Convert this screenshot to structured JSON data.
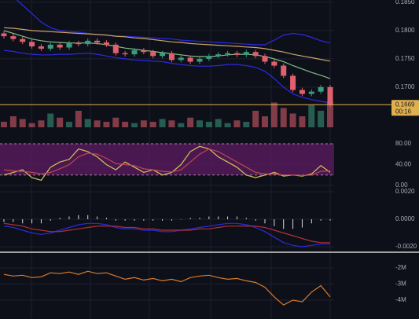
{
  "chart_data": [
    {
      "type": "candlestick",
      "open": [
        0.1795,
        0.179,
        0.1785,
        0.178,
        0.1772,
        0.1768,
        0.1775,
        0.177,
        0.1778,
        0.1776,
        0.1782,
        0.1779,
        0.1775,
        0.176,
        0.1758,
        0.1765,
        0.1762,
        0.1755,
        0.176,
        0.1748,
        0.1752,
        0.1745,
        0.175,
        0.1755,
        0.1758,
        0.176,
        0.1757,
        0.1762,
        0.1755,
        0.1745,
        0.1738,
        0.172,
        0.1695,
        0.1688,
        0.1692,
        0.17
      ],
      "high": [
        0.1799,
        0.1794,
        0.1789,
        0.1784,
        0.1776,
        0.1779,
        0.1779,
        0.1782,
        0.1782,
        0.1786,
        0.1786,
        0.1783,
        0.1779,
        0.1764,
        0.1769,
        0.1769,
        0.1766,
        0.1764,
        0.1764,
        0.1756,
        0.1756,
        0.1754,
        0.1759,
        0.1762,
        0.1764,
        0.1764,
        0.1766,
        0.1766,
        0.1759,
        0.1749,
        0.1742,
        0.1724,
        0.1699,
        0.1696,
        0.1704,
        0.1704
      ],
      "low": [
        0.1786,
        0.1781,
        0.1776,
        0.1768,
        0.1764,
        0.1764,
        0.1766,
        0.1766,
        0.1772,
        0.1772,
        0.1775,
        0.1771,
        0.1756,
        0.1754,
        0.1754,
        0.1758,
        0.1751,
        0.1751,
        0.1744,
        0.1744,
        0.1741,
        0.1741,
        0.1746,
        0.1751,
        0.1754,
        0.1753,
        0.1753,
        0.1751,
        0.1741,
        0.1734,
        0.1716,
        0.1691,
        0.1684,
        0.1684,
        0.1688,
        0.1665
      ],
      "close": [
        0.179,
        0.1785,
        0.178,
        0.1772,
        0.1768,
        0.1775,
        0.177,
        0.1778,
        0.1776,
        0.1782,
        0.1779,
        0.1775,
        0.176,
        0.1758,
        0.1765,
        0.1762,
        0.1755,
        0.176,
        0.1748,
        0.1752,
        0.1745,
        0.175,
        0.1755,
        0.1758,
        0.176,
        0.1757,
        0.1762,
        0.1755,
        0.1745,
        0.1738,
        0.172,
        0.1695,
        0.1688,
        0.1692,
        0.17,
        0.1669
      ],
      "up_color": "#3d9c80",
      "down_color": "#e0606e",
      "volume": [
        20,
        40,
        30,
        15,
        25,
        50,
        35,
        20,
        60,
        30,
        25,
        20,
        35,
        20,
        15,
        25,
        20,
        30,
        25,
        15,
        35,
        25,
        20,
        30,
        15,
        25,
        20,
        60,
        40,
        90,
        70,
        50,
        40,
        80,
        60,
        95
      ],
      "vlim": [
        0,
        100
      ],
      "series": [
        {
          "color": "#2a2ae0",
          "values": [
            0.187,
            0.186,
            0.1845,
            0.183,
            0.1815,
            0.1805,
            0.18,
            0.1798,
            0.1797,
            0.1795,
            0.1793,
            0.1792,
            0.179,
            0.179,
            0.1789,
            0.1788,
            0.1787,
            0.1786,
            0.1785,
            0.1783,
            0.1782,
            0.1781,
            0.178,
            0.1779,
            0.1778,
            0.1777,
            0.1776,
            0.1775,
            0.1775,
            0.1783,
            0.1792,
            0.1795,
            0.1793,
            0.1788,
            0.1782,
            0.1778
          ]
        },
        {
          "color": "#2a2ae0",
          "values": [
            0.1765,
            0.1763,
            0.176,
            0.1758,
            0.1757,
            0.1757,
            0.1758,
            0.1758,
            0.1759,
            0.176,
            0.1758,
            0.1755,
            0.1752,
            0.175,
            0.1748,
            0.1747,
            0.1746,
            0.1745,
            0.1742,
            0.174,
            0.1738,
            0.1737,
            0.1737,
            0.1738,
            0.174,
            0.174,
            0.1738,
            0.1735,
            0.1728,
            0.1715,
            0.17,
            0.1688,
            0.1682,
            0.1678,
            0.1675,
            0.1672
          ]
        },
        {
          "color": "#7fbf7f",
          "values": [
            0.18,
            0.1795,
            0.179,
            0.1785,
            0.1782,
            0.178,
            0.1779,
            0.1778,
            0.1778,
            0.1778,
            0.1777,
            0.1775,
            0.1772,
            0.1769,
            0.1767,
            0.1765,
            0.1763,
            0.1761,
            0.1759,
            0.1757,
            0.1755,
            0.1754,
            0.1754,
            0.1755,
            0.1757,
            0.1758,
            0.1758,
            0.1757,
            0.1754,
            0.175,
            0.1745,
            0.1738,
            0.1732,
            0.1726,
            0.1721,
            0.1715
          ]
        },
        {
          "color": "#c9a36a",
          "values": [
            0.1805,
            0.1804,
            0.1802,
            0.18,
            0.1799,
            0.1798,
            0.1797,
            0.1796,
            0.1795,
            0.1794,
            0.1793,
            0.1792,
            0.179,
            0.1789,
            0.1787,
            0.1786,
            0.1784,
            0.1782,
            0.178,
            0.1779,
            0.1777,
            0.1776,
            0.1775,
            0.1774,
            0.1773,
            0.1772,
            0.1771,
            0.177,
            0.1768,
            0.1765,
            0.1762,
            0.1758,
            0.1755,
            0.1752,
            0.1749,
            0.1746
          ]
        }
      ],
      "ylim": [
        0.1604,
        0.1854
      ],
      "yticks": [
        {
          "value": 0.185,
          "label": "0.1850"
        },
        {
          "value": 0.18,
          "label": "0.1800"
        },
        {
          "value": 0.175,
          "label": "0.1750"
        },
        {
          "value": 0.17,
          "label": "0.1700"
        }
      ],
      "last_price": {
        "value": 0.1669,
        "label": "0.1669"
      },
      "countdown": "00:16",
      "last_color": "#e0b050"
    },
    {
      "type": "line",
      "band": [
        20,
        80
      ],
      "band_color": "#5a1a5e",
      "series": [
        {
          "color": "#d4c45a",
          "values": [
            20,
            25,
            30,
            15,
            10,
            35,
            45,
            50,
            70,
            65,
            55,
            40,
            30,
            45,
            35,
            25,
            30,
            20,
            25,
            40,
            65,
            75,
            70,
            55,
            45,
            35,
            20,
            15,
            20,
            25,
            18,
            20,
            18,
            22,
            38,
            25
          ]
        },
        {
          "color": "#c0464e",
          "values": [
            30,
            28,
            27,
            25,
            22,
            25,
            32,
            40,
            55,
            62,
            60,
            52,
            42,
            40,
            38,
            32,
            30,
            27,
            26,
            30,
            45,
            60,
            70,
            65,
            55,
            45,
            35,
            25,
            22,
            22,
            20,
            20,
            19,
            20,
            27,
            28
          ]
        }
      ],
      "ylim": [
        -6,
        84.5
      ],
      "yticks": [
        {
          "value": 80,
          "label": "80.00"
        },
        {
          "value": 40,
          "label": "40.00"
        },
        {
          "value": 0,
          "label": "0.00"
        }
      ]
    },
    {
      "type": "line",
      "histogram": [
        -0.0002,
        -0.0002,
        -0.0003,
        -0.0003,
        -0.0003,
        -0.0001,
        0.0001,
        0.0002,
        0.0003,
        0.0003,
        0.0002,
        0.0001,
        -0.0001,
        -0.0001,
        -0.0001,
        -0.0001,
        -0.0001,
        -0.0001,
        -0.0001,
        0,
        0.0001,
        0.0001,
        0.0002,
        0.0002,
        0.0002,
        0.0002,
        0.0001,
        -0.0001,
        -0.0003,
        -0.0005,
        -0.0007,
        -0.0007,
        -0.0006,
        -0.0003,
        -0.0001,
        -0.0001
      ],
      "histogram_color": "#d8d8d8",
      "series": [
        {
          "color": "#2a2ae0",
          "values": [
            -0.0005,
            -0.0006,
            -0.0008,
            -0.001,
            -0.0011,
            -0.001,
            -0.0008,
            -0.0006,
            -0.0004,
            -0.0003,
            -0.0003,
            -0.0004,
            -0.0006,
            -0.0007,
            -0.0007,
            -0.0008,
            -0.0008,
            -0.0009,
            -0.0009,
            -0.0008,
            -0.0007,
            -0.0006,
            -0.0005,
            -0.0004,
            -0.0003,
            -0.0003,
            -0.0004,
            -0.0006,
            -0.0009,
            -0.0013,
            -0.0017,
            -0.0019,
            -0.002,
            -0.0019,
            -0.0018,
            -0.0018
          ]
        },
        {
          "color": "#b03038",
          "values": [
            -0.0003,
            -0.0004,
            -0.0005,
            -0.0007,
            -0.0008,
            -0.0009,
            -0.0009,
            -0.0008,
            -0.0007,
            -0.0006,
            -0.0005,
            -0.0005,
            -0.0005,
            -0.0006,
            -0.0006,
            -0.0007,
            -0.0007,
            -0.0008,
            -0.0008,
            -0.0008,
            -0.0008,
            -0.0007,
            -0.0007,
            -0.0006,
            -0.0005,
            -0.0005,
            -0.0005,
            -0.0005,
            -0.0006,
            -0.0008,
            -0.001,
            -0.0012,
            -0.0014,
            -0.0016,
            -0.0017,
            -0.0017
          ]
        }
      ],
      "ylim": [
        -0.00234,
        0.00223
      ],
      "yticks": [
        {
          "value": 0.002,
          "label": "0.0020"
        },
        {
          "value": 0,
          "label": "0.0000"
        },
        {
          "value": -0.002,
          "label": "-0.0020"
        }
      ]
    },
    {
      "type": "line",
      "series": [
        {
          "color": "#d97a2a",
          "values": [
            -2400000,
            -2500000,
            -2450000,
            -2600000,
            -2550000,
            -2300000,
            -2350000,
            -2250000,
            -2400000,
            -2200000,
            -2350000,
            -2300000,
            -2500000,
            -2700000,
            -2600000,
            -2750000,
            -2650000,
            -2800000,
            -2700000,
            -2850000,
            -2600000,
            -2500000,
            -2450000,
            -2600000,
            -2700000,
            -2650000,
            -2800000,
            -2900000,
            -3200000,
            -3800000,
            -4300000,
            -4000000,
            -4100000,
            -3500000,
            -3100000,
            -3800000
          ]
        }
      ],
      "ylim": [
        -5170000,
        -1070000
      ],
      "yticks": [
        {
          "value": -2000000,
          "label": "-2M"
        },
        {
          "value": -3000000,
          "label": "-3M"
        },
        {
          "value": -4000000,
          "label": "-4M"
        }
      ]
    }
  ]
}
